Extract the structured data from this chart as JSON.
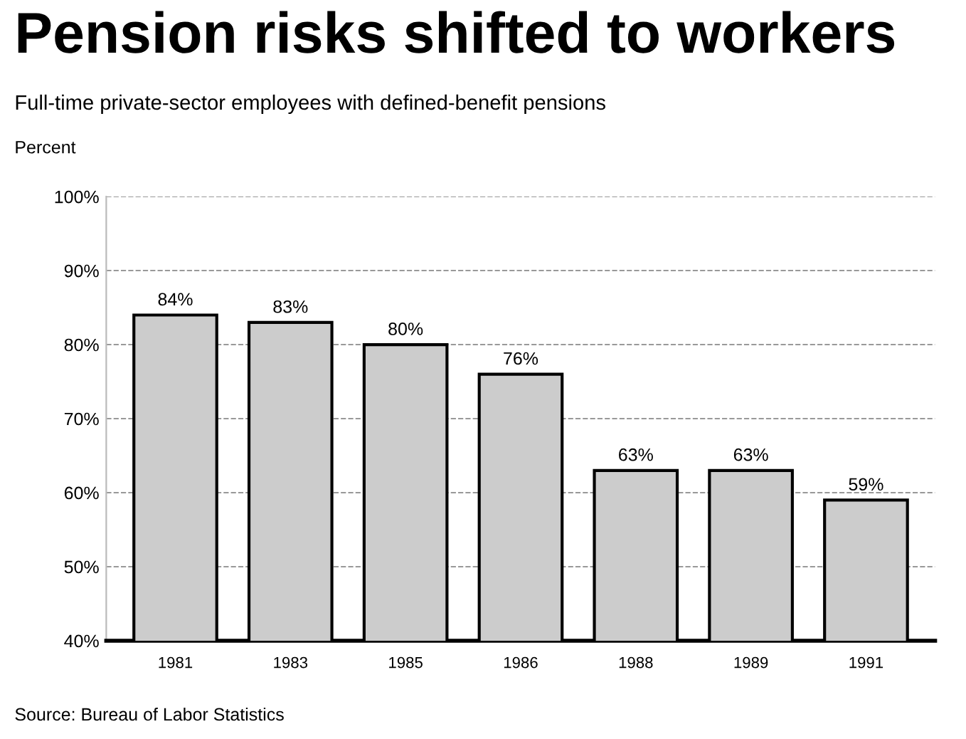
{
  "chart_data": {
    "type": "bar",
    "title": "Pension risks shifted to workers",
    "subtitle": "Full-time private-sector employees with defined-benefit pensions",
    "ylabel": "Percent",
    "categories": [
      "1981",
      "1983",
      "1985",
      "1986",
      "1988",
      "1989",
      "1991"
    ],
    "values": [
      84,
      83,
      80,
      76,
      63,
      63,
      59
    ],
    "value_labels": [
      "84%",
      "83%",
      "80%",
      "76%",
      "63%",
      "63%",
      "59%"
    ],
    "color": "#cccccc",
    "ylim": [
      40,
      100
    ],
    "yticks": [
      {
        "value": 40,
        "label": "40%"
      },
      {
        "value": 50,
        "label": "50%"
      },
      {
        "value": 60,
        "label": "60%"
      },
      {
        "value": 70,
        "label": "70%"
      },
      {
        "value": 80,
        "label": "80%"
      },
      {
        "value": 90,
        "label": "90%"
      },
      {
        "value": 100,
        "label": "100%"
      }
    ],
    "grid": "y",
    "annotations": [
      "Source: Bureau of Labor Statistics"
    ]
  }
}
